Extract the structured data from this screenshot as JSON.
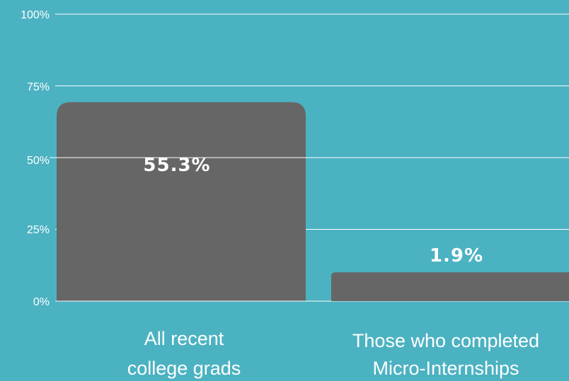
{
  "chart_data": {
    "type": "bar",
    "categories": [
      [
        "All recent",
        "college grads"
      ],
      [
        "Those who completed",
        "Micro-Internships"
      ]
    ],
    "values": [
      55.3,
      1.9
    ],
    "value_labels": [
      "55.3%",
      "1.9%"
    ],
    "yticks": [
      "0%",
      "25%",
      "50%",
      "75%",
      "100%"
    ],
    "ylim": [
      0,
      100
    ],
    "grid": true,
    "colors": {
      "background": "#4bb2c2",
      "bar": "#666666",
      "text": "#ffffff",
      "grid": "#ffffff"
    }
  }
}
